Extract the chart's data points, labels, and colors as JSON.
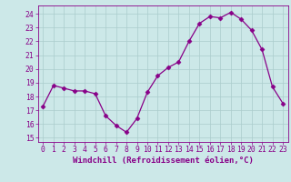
{
  "x": [
    0,
    1,
    2,
    3,
    4,
    5,
    6,
    7,
    8,
    9,
    10,
    11,
    12,
    13,
    14,
    15,
    16,
    17,
    18,
    19,
    20,
    21,
    22,
    23
  ],
  "y": [
    17.3,
    18.8,
    18.6,
    18.4,
    18.4,
    18.2,
    16.6,
    15.9,
    15.4,
    16.4,
    18.3,
    19.5,
    20.1,
    20.5,
    22.0,
    23.3,
    23.8,
    23.7,
    24.1,
    23.6,
    22.8,
    21.4,
    18.7,
    17.5
  ],
  "line_color": "#880088",
  "marker": "D",
  "marker_size": 2.5,
  "bg_color": "#cce8e8",
  "grid_color": "#aacccc",
  "xlabel": "Windchill (Refroidissement éolien,°C)",
  "xlabel_color": "#880088",
  "tick_color": "#880088",
  "ylabel_ticks": [
    15,
    16,
    17,
    18,
    19,
    20,
    21,
    22,
    23,
    24
  ],
  "xlim": [
    -0.5,
    23.5
  ],
  "ylim": [
    14.7,
    24.6
  ],
  "label_fontsize": 6.5,
  "tick_fontsize": 5.8
}
